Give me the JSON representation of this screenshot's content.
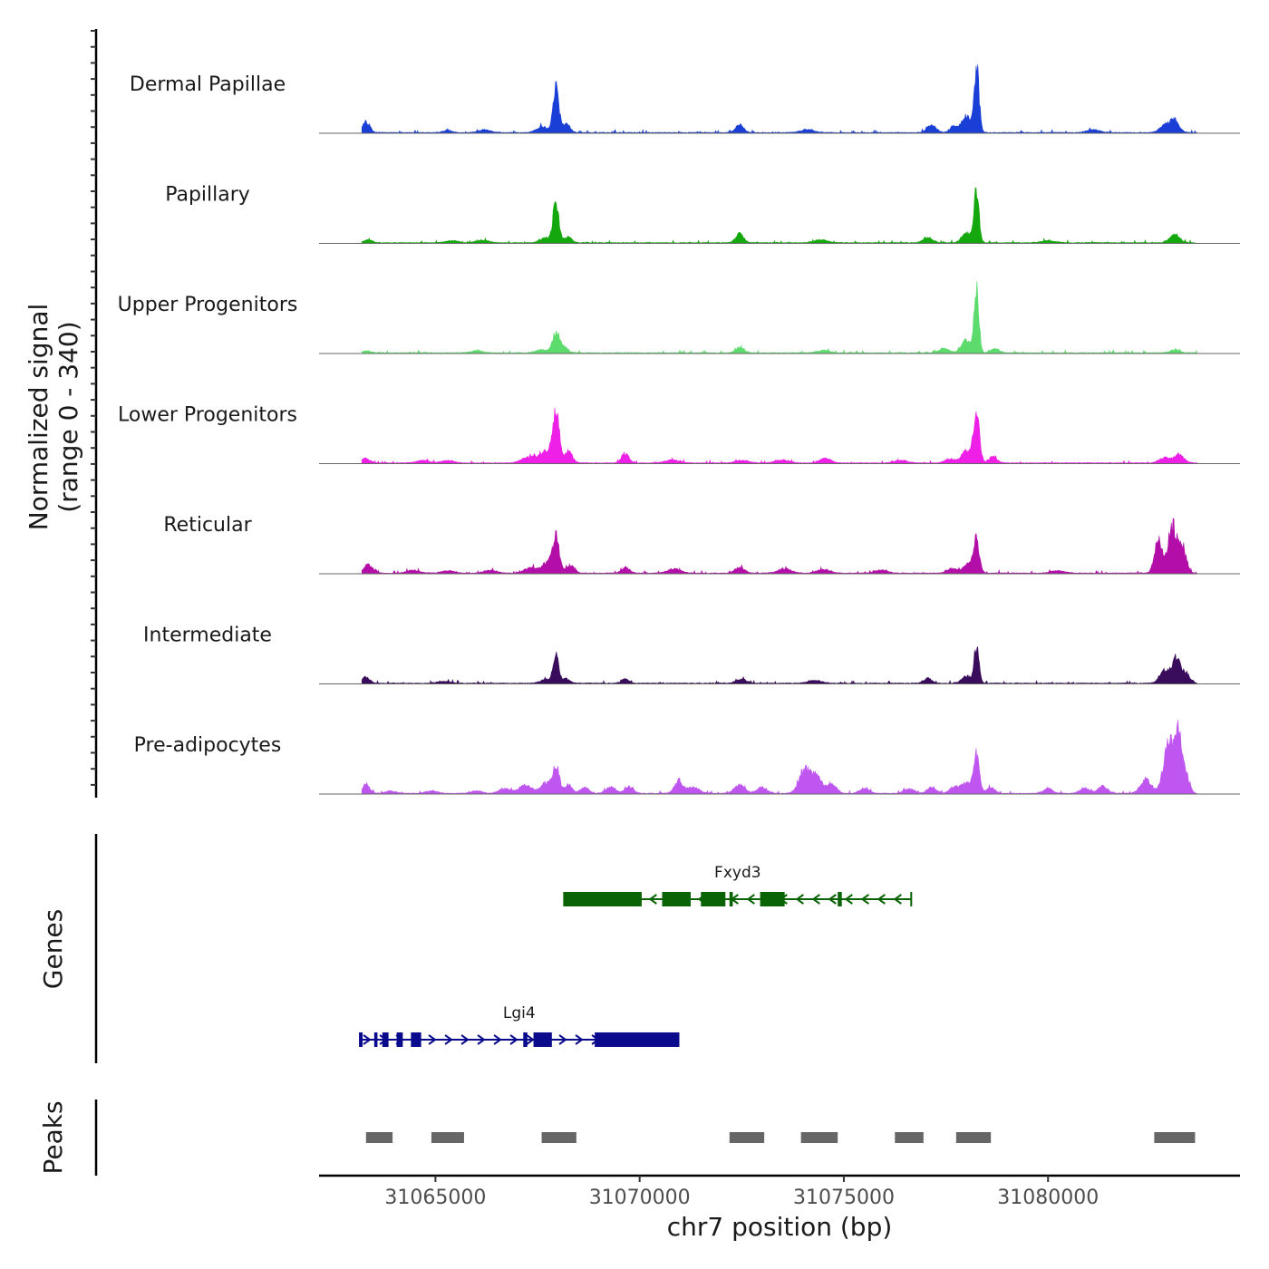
{
  "chart_data": {
    "type": "coverage-track",
    "y_axis_label": "Normalized signal",
    "y_axis_range_label": "(range 0 - 340)",
    "ylim": [
      0,
      340
    ],
    "x_axis_label": "chr7 position (bp)",
    "xlim": [
      31062150,
      31084700
    ],
    "x_ticks": [
      31065000,
      31070000,
      31075000,
      31080000
    ],
    "x_tick_labels": [
      "31065000",
      "31070000",
      "31075000",
      "31080000"
    ],
    "region_start": 31063200,
    "region_end": 31083650,
    "tracks": [
      {
        "name": "Dermal Papillae",
        "color": "#1a3fd6",
        "peaks": [
          [
            31063300,
            55,
            90
          ],
          [
            31065300,
            10,
            120
          ],
          [
            31066200,
            14,
            150
          ],
          [
            31067600,
            30,
            130
          ],
          [
            31067950,
            225,
            70
          ],
          [
            31068200,
            45,
            90
          ],
          [
            31072450,
            38,
            100
          ],
          [
            31074100,
            16,
            160
          ],
          [
            31077150,
            35,
            110
          ],
          [
            31077700,
            32,
            100
          ],
          [
            31078250,
            330,
            60
          ],
          [
            31078000,
            80,
            110
          ],
          [
            31081100,
            15,
            150
          ],
          [
            31082850,
            35,
            120
          ],
          [
            31083100,
            60,
            110
          ]
        ]
      },
      {
        "name": "Papillary",
        "color": "#15a80e",
        "peaks": [
          [
            31063350,
            14,
            100
          ],
          [
            31065400,
            10,
            150
          ],
          [
            31066150,
            12,
            150
          ],
          [
            31067700,
            24,
            130
          ],
          [
            31067950,
            200,
            70
          ],
          [
            31068250,
            30,
            90
          ],
          [
            31072450,
            42,
            100
          ],
          [
            31074450,
            14,
            160
          ],
          [
            31077050,
            25,
            110
          ],
          [
            31078250,
            250,
            60
          ],
          [
            31078000,
            50,
            110
          ],
          [
            31080000,
            10,
            160
          ],
          [
            31083100,
            40,
            120
          ]
        ]
      },
      {
        "name": "Upper Progenitors",
        "color": "#5ddb6c",
        "peaks": [
          [
            31063300,
            10,
            100
          ],
          [
            31066000,
            10,
            150
          ],
          [
            31067600,
            16,
            130
          ],
          [
            31067950,
            95,
            90
          ],
          [
            31068150,
            25,
            90
          ],
          [
            31072450,
            25,
            100
          ],
          [
            31074500,
            12,
            150
          ],
          [
            31077450,
            22,
            120
          ],
          [
            31078250,
            290,
            60
          ],
          [
            31078000,
            60,
            120
          ],
          [
            31078700,
            22,
            100
          ],
          [
            31083100,
            14,
            120
          ]
        ]
      },
      {
        "name": "Lower Progenitors",
        "color": "#ee1fe6",
        "peaks": [
          [
            31063300,
            22,
            100
          ],
          [
            31064700,
            12,
            150
          ],
          [
            31065300,
            12,
            150
          ],
          [
            31067300,
            30,
            180
          ],
          [
            31067700,
            55,
            140
          ],
          [
            31067950,
            250,
            80
          ],
          [
            31068250,
            55,
            100
          ],
          [
            31069650,
            45,
            90
          ],
          [
            31070800,
            14,
            180
          ],
          [
            31072500,
            14,
            150
          ],
          [
            31073500,
            14,
            170
          ],
          [
            31074550,
            24,
            130
          ],
          [
            31076400,
            12,
            160
          ],
          [
            31077600,
            20,
            120
          ],
          [
            31078250,
            260,
            70
          ],
          [
            31078000,
            60,
            120
          ],
          [
            31078650,
            30,
            100
          ],
          [
            31082850,
            26,
            130
          ],
          [
            31083200,
            40,
            120
          ]
        ]
      },
      {
        "name": "Reticular",
        "color": "#b30fa8",
        "peaks": [
          [
            31063350,
            40,
            110
          ],
          [
            31064450,
            14,
            150
          ],
          [
            31065300,
            12,
            150
          ],
          [
            31066350,
            14,
            150
          ],
          [
            31067350,
            28,
            160
          ],
          [
            31067750,
            55,
            120
          ],
          [
            31067950,
            170,
            80
          ],
          [
            31068300,
            38,
            100
          ],
          [
            31069650,
            28,
            100
          ],
          [
            31070850,
            20,
            160
          ],
          [
            31072450,
            30,
            110
          ],
          [
            31073550,
            20,
            160
          ],
          [
            31074500,
            18,
            160
          ],
          [
            31075900,
            15,
            150
          ],
          [
            31077650,
            22,
            120
          ],
          [
            31078250,
            160,
            70
          ],
          [
            31078050,
            45,
            120
          ],
          [
            31080250,
            12,
            160
          ],
          [
            31082700,
            170,
            90
          ],
          [
            31083050,
            230,
            110
          ],
          [
            31083300,
            120,
            90
          ]
        ]
      },
      {
        "name": "Intermediate",
        "color": "#3a0c5c",
        "peaks": [
          [
            31063300,
            32,
            90
          ],
          [
            31065200,
            10,
            150
          ],
          [
            31067700,
            18,
            130
          ],
          [
            31067950,
            130,
            70
          ],
          [
            31068200,
            22,
            90
          ],
          [
            31069650,
            22,
            90
          ],
          [
            31072500,
            20,
            120
          ],
          [
            31074300,
            14,
            160
          ],
          [
            31077050,
            24,
            100
          ],
          [
            31078250,
            175,
            60
          ],
          [
            31078000,
            35,
            110
          ],
          [
            31082850,
            60,
            120
          ],
          [
            31083150,
            120,
            110
          ],
          [
            31083400,
            40,
            90
          ]
        ]
      },
      {
        "name": "Pre-adipocytes",
        "color": "#c056f0",
        "peaks": [
          [
            31063300,
            45,
            90
          ],
          [
            31063900,
            12,
            120
          ],
          [
            31064900,
            14,
            130
          ],
          [
            31066000,
            12,
            130
          ],
          [
            31066700,
            24,
            140
          ],
          [
            31067200,
            40,
            150
          ],
          [
            31067700,
            50,
            130
          ],
          [
            31067950,
            130,
            80
          ],
          [
            31068250,
            40,
            100
          ],
          [
            31068650,
            30,
            100
          ],
          [
            31069300,
            30,
            120
          ],
          [
            31069750,
            34,
            100
          ],
          [
            31070950,
            60,
            100
          ],
          [
            31071300,
            30,
            150
          ],
          [
            31072450,
            40,
            130
          ],
          [
            31073000,
            30,
            120
          ],
          [
            31074050,
            120,
            140
          ],
          [
            31074350,
            80,
            120
          ],
          [
            31074700,
            50,
            110
          ],
          [
            31075500,
            26,
            110
          ],
          [
            31076600,
            22,
            130
          ],
          [
            31077150,
            30,
            110
          ],
          [
            31077700,
            32,
            110
          ],
          [
            31078250,
            190,
            70
          ],
          [
            31078000,
            50,
            120
          ],
          [
            31078600,
            30,
            100
          ],
          [
            31080000,
            24,
            110
          ],
          [
            31080900,
            26,
            120
          ],
          [
            31081350,
            36,
            110
          ],
          [
            31082400,
            70,
            130
          ],
          [
            31082950,
            250,
            120
          ],
          [
            31083200,
            290,
            90
          ],
          [
            31083400,
            70,
            80
          ]
        ]
      }
    ],
    "genes": [
      {
        "name": "Fxyd3",
        "strand": "-",
        "color": "#0a6405",
        "start": 31068150,
        "end": 31076650,
        "exons": [
          [
            31068150,
            31070050
          ],
          [
            31070550,
            31071250
          ],
          [
            31071500,
            31072100
          ],
          [
            31072200,
            31072280
          ],
          [
            31072950,
            31073550
          ],
          [
            31074850,
            31074950
          ]
        ]
      },
      {
        "name": "Lgi4",
        "strand": "+",
        "color": "#0a0a8c",
        "start": 31063150,
        "end": 31070950,
        "exons": [
          [
            31063150,
            31063200
          ],
          [
            31063500,
            31063580
          ],
          [
            31063700,
            31063850
          ],
          [
            31064050,
            31064200
          ],
          [
            31064400,
            31064650
          ],
          [
            31067150,
            31067250
          ],
          [
            31067400,
            31067850
          ],
          [
            31068900,
            31070950
          ]
        ]
      }
    ],
    "peaks_label": "Peaks",
    "genes_label": "Genes",
    "peak_regions": [
      [
        31063300,
        31063950
      ],
      [
        31064900,
        31065700
      ],
      [
        31067600,
        31068450
      ],
      [
        31072200,
        31073050
      ],
      [
        31073950,
        31074850
      ],
      [
        31076250,
        31076950
      ],
      [
        31077750,
        31078600
      ],
      [
        31082600,
        31083600
      ]
    ],
    "peak_color": "#666666"
  }
}
